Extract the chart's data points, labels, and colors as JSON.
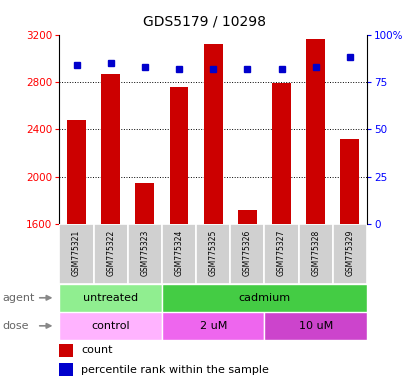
{
  "title": "GDS5179 / 10298",
  "samples": [
    "GSM775321",
    "GSM775322",
    "GSM775323",
    "GSM775324",
    "GSM775325",
    "GSM775326",
    "GSM775327",
    "GSM775328",
    "GSM775329"
  ],
  "counts": [
    2480,
    2870,
    1950,
    2760,
    3120,
    1720,
    2790,
    3160,
    2320
  ],
  "percentiles": [
    84,
    85,
    83,
    82,
    82,
    82,
    82,
    83,
    88
  ],
  "y_min": 1600,
  "y_max": 3200,
  "y_ticks": [
    1600,
    2000,
    2400,
    2800,
    3200
  ],
  "y2_ticks": [
    0,
    25,
    50,
    75,
    100
  ],
  "y2_tick_labels": [
    "0",
    "25",
    "50",
    "75",
    "100%"
  ],
  "bar_color": "#cc0000",
  "dot_color": "#0000cc",
  "agent_groups": [
    {
      "label": "untreated",
      "start": 0,
      "end": 3,
      "color": "#90ee90"
    },
    {
      "label": "cadmium",
      "start": 3,
      "end": 9,
      "color": "#44cc44"
    }
  ],
  "dose_groups": [
    {
      "label": "control",
      "start": 0,
      "end": 3,
      "color": "#ffb3ff"
    },
    {
      "label": "2 uM",
      "start": 3,
      "end": 6,
      "color": "#ee66ee"
    },
    {
      "label": "10 uM",
      "start": 6,
      "end": 9,
      "color": "#cc44cc"
    }
  ],
  "legend_count_label": "count",
  "legend_pct_label": "percentile rank within the sample",
  "xlabel_agent": "agent",
  "xlabel_dose": "dose"
}
